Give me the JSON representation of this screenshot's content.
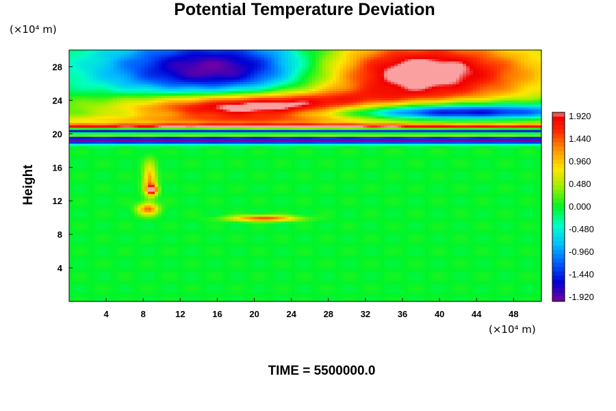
{
  "chart_data": {
    "type": "heatmap",
    "title": "Potential Temperature Deviation",
    "ylabel": "Height",
    "y_unit": "(×10⁴ m)",
    "x_unit": "(×10⁴ m)",
    "footer": "TIME = 5500000.0",
    "xlim": [
      0,
      51
    ],
    "ylim": [
      0,
      30
    ],
    "x_ticks": [
      4,
      8,
      12,
      16,
      20,
      24,
      28,
      32,
      36,
      40,
      44,
      48
    ],
    "y_ticks": [
      4,
      8,
      12,
      16,
      20,
      24,
      28
    ],
    "colorbar": {
      "range": [
        -1.92,
        1.92
      ],
      "tick_labels": [
        "1.920",
        "1.440",
        "0.960",
        "0.480",
        "0.000",
        "-0.480",
        "-0.960",
        "-1.440",
        "-1.920"
      ]
    },
    "features": [
      {
        "kind": "blob",
        "x": 17,
        "y": 27.8,
        "sx": 9,
        "sy": 2.6,
        "v": -2.2
      },
      {
        "kind": "blob",
        "x": 37,
        "y": 27.3,
        "sx": 10,
        "sy": 3,
        "v": 2.4
      },
      {
        "kind": "blob",
        "x": 20,
        "y": 23.2,
        "sx": 10,
        "sy": 1.2,
        "v": 2.6
      },
      {
        "kind": "blob",
        "x": 40,
        "y": 22.6,
        "sx": 10,
        "sy": 0.8,
        "v": -2.4
      },
      {
        "kind": "blob",
        "x": 8.7,
        "y": 14.5,
        "sx": 0.5,
        "sy": 1.4,
        "v": 1.2
      },
      {
        "kind": "blob",
        "x": 9,
        "y": 13.3,
        "sx": 0.4,
        "sy": 0.4,
        "v": 1.7
      },
      {
        "kind": "blob",
        "x": 8.5,
        "y": 11,
        "sx": 0.8,
        "sy": 0.5,
        "v": 1.3
      },
      {
        "kind": "blob",
        "x": 21,
        "y": 9.9,
        "sx": 2.5,
        "sy": 0.25,
        "v": 1.5
      },
      {
        "kind": "band",
        "y": 20.8,
        "w": 0.25,
        "v": 2.4
      },
      {
        "kind": "band",
        "y": 20.3,
        "w": 0.35,
        "v": -2.4
      },
      {
        "kind": "band",
        "y": 19.9,
        "w": 0.25,
        "v": 2.2
      },
      {
        "kind": "band",
        "y": 19.3,
        "w": 0.35,
        "v": -2.2
      },
      {
        "kind": "band",
        "y": 21.6,
        "w": 0.4,
        "v": 0.6
      }
    ]
  }
}
